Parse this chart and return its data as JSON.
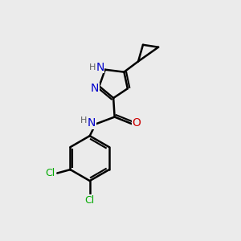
{
  "background_color": "#ebebeb",
  "line_color": "#000000",
  "bond_width": 1.8,
  "atom_colors": {
    "N": "#0000cc",
    "O": "#cc0000",
    "Cl": "#00aa00",
    "H": "#606060"
  },
  "font_size_atom": 10,
  "font_size_h": 8,
  "font_size_cl": 9
}
